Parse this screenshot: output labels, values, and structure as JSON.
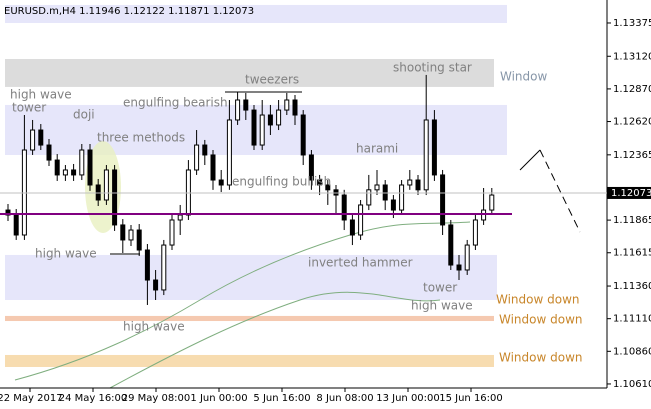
{
  "chart_data": {
    "type": "candlestick",
    "header": "EURUSD.m,H4  1.11946 1.12122 1.11871 1.12073",
    "bid": 1.12073,
    "level": 1.11912,
    "ylim": [
      1.10579,
      1.13551
    ],
    "yticks": [
      1.13375,
      {
        "value": 1.1312,
        "label": "1.13120"
      },
      {
        "value": 1.1287,
        "label": "1.12870"
      },
      {
        "value": 1.1262,
        "label": "1.12620"
      },
      1.12365,
      1.11865,
      1.11615,
      {
        "value": 1.1136,
        "label": "1.11360"
      },
      {
        "value": 1.1111,
        "label": "1.11110"
      },
      {
        "value": 1.1086,
        "label": "1.10860"
      },
      {
        "value": 1.1061,
        "label": "1.10610"
      }
    ],
    "xlabels": [
      "22 May 2017",
      "24 May 16:00",
      "29 May 08:00",
      "1 Jun 00:00",
      "5 Jun 16:00",
      "8 Jun 08:00",
      "13 Jun 00:00",
      "15 Jun 16:00"
    ],
    "zones": [
      {
        "top": 1.13513,
        "bottom": 1.13375,
        "color": "#e6e6fa"
      },
      {
        "top": 1.13099,
        "bottom": 1.12885,
        "color": "#dcdcdc"
      },
      {
        "top": 1.12747,
        "bottom": 1.12364,
        "color": "#e6e6fa"
      },
      {
        "top": 1.11598,
        "bottom": 1.11253,
        "color": "#e6e6fa"
      },
      {
        "top": 1.11131,
        "bottom": 1.11092,
        "color": "#f5c9b0"
      },
      {
        "top": 1.10832,
        "bottom": 1.1074,
        "color": "#f7dcb0"
      }
    ],
    "annotations": [
      "high wave",
      "tower",
      "doji",
      "engulfing bearish",
      "three methods",
      "tweezers",
      "shooting star",
      "harami",
      "engulfing bullish",
      "high wave",
      "inverted hammer",
      "tower",
      "high wave",
      "high wave",
      "Window",
      "Window down",
      "Window down",
      "Window down"
    ],
    "ohlc": [
      [
        1.11942,
        1.11988,
        1.11858,
        1.11904
      ],
      [
        1.11904,
        1.1195,
        1.11713,
        1.11751
      ],
      [
        1.11751,
        1.1267,
        1.11713,
        1.12402
      ],
      [
        1.12402,
        1.12632,
        1.12364,
        1.12555
      ],
      [
        1.12555,
        1.12601,
        1.12402,
        1.1244
      ],
      [
        1.1244,
        1.12486,
        1.12279,
        1.12325
      ],
      [
        1.12325,
        1.12371,
        1.12165,
        1.12211
      ],
      [
        1.12211,
        1.12287,
        1.12165,
        1.12249
      ],
      [
        1.12249,
        1.12295,
        1.12165,
        1.12211
      ],
      [
        1.12211,
        1.12448,
        1.12172,
        1.12402
      ],
      [
        1.12402,
        1.12448,
        1.12089,
        1.12134
      ],
      [
        1.12134,
        1.1218,
        1.11973,
        1.12019
      ],
      [
        1.12019,
        1.12287,
        1.11981,
        1.12249
      ],
      [
        1.12249,
        1.12287,
        1.11782,
        1.11828
      ],
      [
        1.11828,
        1.11873,
        1.11613,
        1.11713
      ],
      [
        1.11713,
        1.11828,
        1.11667,
        1.11789
      ],
      [
        1.11789,
        1.11835,
        1.1159,
        1.11636
      ],
      [
        1.11636,
        1.11682,
        1.11215,
        1.11406
      ],
      [
        1.11406,
        1.11483,
        1.11253,
        1.1133
      ],
      [
        1.1133,
        1.11713,
        1.11291,
        1.11674
      ],
      [
        1.11674,
        1.11904,
        1.11636,
        1.11866
      ],
      [
        1.11866,
        1.11981,
        1.11751,
        1.11904
      ],
      [
        1.11904,
        1.12325,
        1.11866,
        1.12249
      ],
      [
        1.12249,
        1.12555,
        1.12211,
        1.1244
      ],
      [
        1.1244,
        1.12479,
        1.12287,
        1.12364
      ],
      [
        1.12364,
        1.12402,
        1.12097,
        1.12172
      ],
      [
        1.12172,
        1.12249,
        1.1208,
        1.12134
      ],
      [
        1.12134,
        1.12785,
        1.12097,
        1.12632
      ],
      [
        1.12632,
        1.12846,
        1.12594,
        1.12785
      ],
      [
        1.12785,
        1.12839,
        1.12632,
        1.12708
      ],
      [
        1.12708,
        1.12747,
        1.12402,
        1.1244
      ],
      [
        1.1244,
        1.12785,
        1.12402,
        1.1267
      ],
      [
        1.1267,
        1.12747,
        1.12517,
        1.12594
      ],
      [
        1.12594,
        1.12785,
        1.12555,
        1.12708
      ],
      [
        1.12708,
        1.12839,
        1.1267,
        1.12785
      ],
      [
        1.12785,
        1.12823,
        1.12594,
        1.1267
      ],
      [
        1.1267,
        1.12708,
        1.12287,
        1.12364
      ],
      [
        1.12364,
        1.12402,
        1.12097,
        1.12172
      ],
      [
        1.12172,
        1.12211,
        1.12057,
        1.12134
      ],
      [
        1.12134,
        1.12172,
        1.11981,
        1.12097
      ],
      [
        1.12097,
        1.12134,
        1.11904,
        1.12057
      ],
      [
        1.12057,
        1.12097,
        1.11789,
        1.11866
      ],
      [
        1.11866,
        1.11904,
        1.11674,
        1.11751
      ],
      [
        1.11751,
        1.12019,
        1.11713,
        1.11981
      ],
      [
        1.11981,
        1.12211,
        1.11942,
        1.12097
      ],
      [
        1.12097,
        1.12249,
        1.12057,
        1.12134
      ],
      [
        1.12134,
        1.12172,
        1.11942,
        1.12019
      ],
      [
        1.12019,
        1.12057,
        1.11881,
        1.11942
      ],
      [
        1.11942,
        1.12172,
        1.11904,
        1.12134
      ],
      [
        1.12134,
        1.12249,
        1.12097,
        1.12172
      ],
      [
        1.12172,
        1.12211,
        1.12057,
        1.12097
      ],
      [
        1.12097,
        1.12977,
        1.12057,
        1.12632
      ],
      [
        1.12632,
        1.12708,
        1.12165,
        1.12211
      ],
      [
        1.12211,
        1.12249,
        1.11751,
        1.11828
      ],
      [
        1.11828,
        1.11866,
        1.11483,
        1.11521
      ],
      [
        1.11521,
        1.11598,
        1.11406,
        1.11483
      ],
      [
        1.11483,
        1.11713,
        1.11445,
        1.11674
      ],
      [
        1.11674,
        1.11904,
        1.11636,
        1.11866
      ],
      [
        1.11866,
        1.12111,
        1.11828,
        1.11942
      ],
      [
        1.11942,
        1.12111,
        1.11904,
        1.12057
      ]
    ]
  }
}
